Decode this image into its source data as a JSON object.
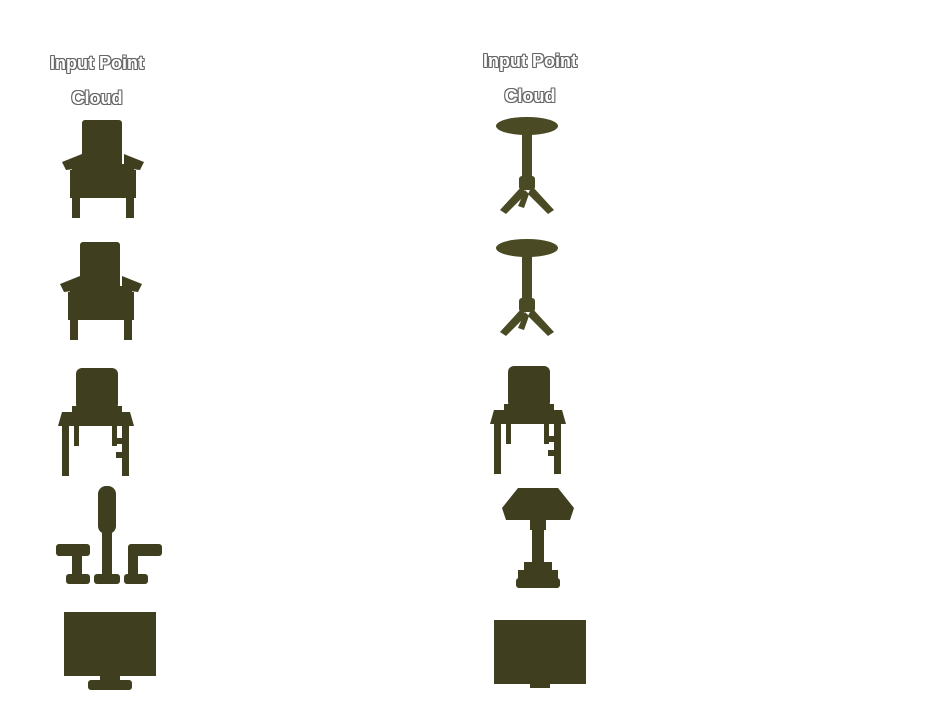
{
  "columns": [
    {
      "title_line1": "Input Point",
      "title_line2": "Cloud",
      "objects": [
        {
          "name": "armchair-model",
          "kind": "armchair",
          "color": "#3f3e1e"
        },
        {
          "name": "armchair-model",
          "kind": "armchair",
          "color": "#3f3e1e"
        },
        {
          "name": "dining-chair-model",
          "kind": "dining-chair",
          "color": "#3f3e1e"
        },
        {
          "name": "faucet-model",
          "kind": "faucet",
          "color": "#3f3e1e"
        },
        {
          "name": "monitor-model",
          "kind": "monitor",
          "color": "#3f3e1e"
        }
      ]
    },
    {
      "title_line1": "Input Point",
      "title_line2": "Cloud",
      "objects": [
        {
          "name": "pedestal-table-model",
          "kind": "pedestal-table",
          "color": "#4a4a24"
        },
        {
          "name": "pedestal-table-model",
          "kind": "pedestal-table",
          "color": "#4a4a24"
        },
        {
          "name": "dining-chair-model",
          "kind": "dining-chair",
          "color": "#3f3e1e"
        },
        {
          "name": "table-lamp-model",
          "kind": "table-lamp",
          "color": "#3f3e1e"
        },
        {
          "name": "monitor-model",
          "kind": "monitor",
          "color": "#3f3e1e"
        }
      ]
    }
  ]
}
